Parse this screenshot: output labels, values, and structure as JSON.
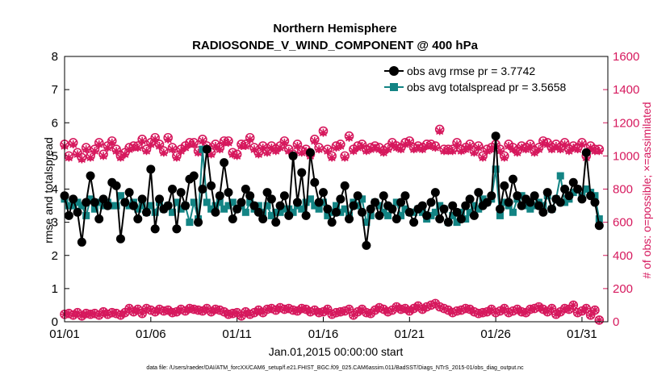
{
  "chart_data": {
    "type": "line",
    "title": "Northern Hemisphere",
    "subtitle": "RADIOSONDE_V_WIND_COMPONENT @ 400 hPa",
    "xlabel": "Jan.01,2015 00:00:00 start",
    "ylabel": "rmse and totalspread",
    "ylabel_right": "# of obs: o=possible; ×=assimilated",
    "xlim": [
      1,
      32.5
    ],
    "ylim": [
      0,
      8
    ],
    "ylim_right": [
      0,
      1600
    ],
    "x_ticks": [
      1,
      6,
      11,
      16,
      21,
      26,
      31
    ],
    "x_tick_labels": [
      "01/01",
      "01/06",
      "01/11",
      "01/16",
      "01/21",
      "01/26",
      "01/31"
    ],
    "y_ticks": [
      0,
      1,
      2,
      3,
      4,
      5,
      6,
      7,
      8
    ],
    "y_ticks_right": [
      0,
      200,
      400,
      600,
      800,
      1000,
      1200,
      1400,
      1600
    ],
    "legend_position": "top-right",
    "colors": {
      "rmse": "#000000",
      "spread": "#138484",
      "obs": "#d6185d"
    },
    "x": [
      1.0,
      1.25,
      1.5,
      1.75,
      2.0,
      2.25,
      2.5,
      2.75,
      3.0,
      3.25,
      3.5,
      3.75,
      4.0,
      4.25,
      4.5,
      4.75,
      5.0,
      5.25,
      5.5,
      5.75,
      6.0,
      6.25,
      6.5,
      6.75,
      7.0,
      7.25,
      7.5,
      7.75,
      8.0,
      8.25,
      8.5,
      8.75,
      9.0,
      9.25,
      9.5,
      9.75,
      10.0,
      10.25,
      10.5,
      10.75,
      11.0,
      11.25,
      11.5,
      11.75,
      12.0,
      12.25,
      12.5,
      12.75,
      13.0,
      13.25,
      13.5,
      13.75,
      14.0,
      14.25,
      14.5,
      14.75,
      15.0,
      15.25,
      15.5,
      15.75,
      16.0,
      16.25,
      16.5,
      16.75,
      17.0,
      17.25,
      17.5,
      17.75,
      18.0,
      18.25,
      18.5,
      18.75,
      19.0,
      19.25,
      19.5,
      19.75,
      20.0,
      20.25,
      20.5,
      20.75,
      21.0,
      21.25,
      21.5,
      21.75,
      22.0,
      22.25,
      22.5,
      22.75,
      23.0,
      23.25,
      23.5,
      23.75,
      24.0,
      24.25,
      24.5,
      24.75,
      25.0,
      25.25,
      25.5,
      25.75,
      26.0,
      26.25,
      26.5,
      26.75,
      27.0,
      27.25,
      27.5,
      27.75,
      28.0,
      28.25,
      28.5,
      28.75,
      29.0,
      29.25,
      29.5,
      29.75,
      30.0,
      30.25,
      30.5,
      30.75,
      31.0,
      31.25,
      31.5,
      31.75,
      32.0
    ],
    "series": [
      {
        "name": "obs avg rmse",
        "legend": "obs avg rmse pr = 3.7742",
        "axis": "left",
        "values": [
          3.8,
          3.2,
          3.7,
          3.3,
          2.4,
          3.6,
          4.4,
          3.6,
          3.1,
          3.7,
          3.5,
          4.2,
          4.1,
          2.5,
          3.6,
          3.9,
          3.5,
          3.1,
          3.7,
          3.3,
          4.6,
          2.8,
          3.7,
          3.4,
          3.5,
          4.0,
          2.8,
          3.9,
          3.5,
          4.3,
          4.4,
          3.0,
          4.0,
          5.2,
          4.1,
          3.3,
          3.8,
          4.8,
          3.9,
          3.1,
          3.4,
          3.6,
          4.0,
          3.8,
          3.5,
          3.3,
          3.1,
          3.9,
          3.7,
          3.0,
          3.5,
          3.8,
          3.2,
          5.0,
          3.6,
          4.5,
          3.2,
          5.1,
          4.2,
          3.6,
          3.9,
          3.4,
          3.0,
          3.3,
          3.7,
          4.1,
          3.1,
          3.5,
          3.8,
          3.3,
          2.3,
          3.4,
          3.6,
          3.2,
          3.8,
          3.5,
          3.4,
          3.1,
          3.6,
          3.8,
          3.3,
          3.0,
          3.4,
          3.5,
          3.2,
          3.6,
          3.9,
          3.1,
          3.4,
          3.0,
          3.5,
          3.3,
          3.1,
          3.5,
          3.7,
          3.2,
          3.9,
          3.5,
          3.6,
          3.8,
          5.6,
          3.4,
          4.1,
          3.6,
          4.3,
          3.8,
          3.5,
          3.7,
          3.6,
          3.8,
          3.5,
          3.3,
          3.9,
          3.4,
          3.7,
          3.6,
          4.0,
          3.8,
          4.2,
          4.0,
          3.7,
          5.1,
          3.8,
          3.6,
          2.9
        ],
        "color": "#000000"
      },
      {
        "name": "obs avg totalspread",
        "legend": "obs avg totalspread pr = 3.5658",
        "axis": "left",
        "values": [
          3.7,
          3.5,
          3.5,
          3.6,
          3.5,
          3.2,
          3.7,
          3.4,
          3.6,
          3.5,
          3.6,
          3.5,
          3.5,
          3.8,
          3.6,
          3.5,
          3.6,
          3.4,
          3.5,
          3.3,
          3.5,
          3.3,
          3.6,
          3.4,
          3.5,
          3.3,
          3.6,
          3.4,
          3.5,
          3.0,
          3.6,
          3.1,
          5.2,
          3.6,
          3.4,
          3.5,
          3.6,
          3.4,
          3.5,
          3.6,
          3.4,
          3.5,
          3.3,
          3.6,
          3.4,
          3.5,
          3.3,
          3.5,
          3.2,
          3.3,
          3.3,
          3.4,
          3.4,
          3.3,
          3.5,
          3.4,
          3.6,
          3.7,
          3.5,
          3.4,
          3.6,
          3.2,
          3.3,
          3.5,
          3.3,
          3.4,
          3.2,
          3.6,
          3.5,
          3.7,
          3.0,
          3.2,
          3.6,
          3.5,
          3.3,
          3.2,
          3.4,
          3.6,
          3.2,
          3.4,
          3.3,
          3.3,
          3.4,
          3.3,
          3.1,
          3.2,
          3.3,
          3.5,
          3.4,
          3.0,
          3.2,
          3.0,
          3.3,
          3.1,
          3.3,
          3.5,
          3.4,
          3.7,
          3.6,
          3.7,
          4.6,
          3.2,
          3.6,
          3.5,
          3.3,
          3.7,
          3.8,
          3.5,
          3.4,
          3.5,
          3.6,
          3.5,
          3.8,
          3.4,
          3.7,
          4.4,
          3.6,
          3.7,
          3.9,
          4.0,
          3.8,
          4.0,
          3.9,
          3.8,
          3.1
        ],
        "color": "#138484"
      },
      {
        "name": "# of obs possible",
        "marker": "o",
        "axis": "right",
        "values": [
          1070,
          1000,
          1080,
          1020,
          990,
          1050,
          1000,
          1040,
          1080,
          1010,
          1060,
          1090,
          1040,
          1000,
          1020,
          1050,
          1060,
          1060,
          1100,
          1040,
          1080,
          1110,
          1070,
          1030,
          1110,
          1050,
          1000,
          1040,
          1060,
          1080,
          1080,
          1030,
          1100,
          1060,
          1020,
          1070,
          1050,
          1090,
          1090,
          1020,
          1010,
          1070,
          1070,
          1110,
          1050,
          1020,
          1060,
          1030,
          1060,
          1040,
          1060,
          1090,
          1040,
          1010,
          1070,
          1030,
          1040,
          1010,
          1100,
          1050,
          1150,
          1040,
          1000,
          1060,
          1070,
          1000,
          1120,
          1040,
          1060,
          1070,
          1040,
          1050,
          1060,
          1050,
          1030,
          1050,
          1080,
          1060,
          1050,
          1080,
          1090,
          1050,
          1060,
          1050,
          1070,
          1070,
          1060,
          1160,
          1040,
          1040,
          1040,
          1080,
          1040,
          1050,
          1070,
          1030,
          1060,
          1000,
          1040,
          1050,
          1070,
          1040,
          1000,
          1070,
          1050,
          1030,
          1060,
          1050,
          1070,
          1030,
          1050,
          1090,
          1080,
          1050,
          1070,
          1050,
          1080,
          1040,
          1060,
          1050,
          1080,
          1000,
          1060,
          1040,
          1040
        ],
        "color": "#d6185d"
      },
      {
        "name": "# of obs assimilated",
        "marker": "x",
        "axis": "right",
        "values": [
          1060,
          990,
          1070,
          1010,
          980,
          1040,
          990,
          1030,
          1070,
          1000,
          1050,
          1080,
          1030,
          990,
          1010,
          1040,
          1050,
          1050,
          1090,
          1030,
          1070,
          1100,
          1060,
          1020,
          1100,
          1040,
          990,
          1030,
          1050,
          1070,
          1070,
          1020,
          1090,
          1050,
          1010,
          1060,
          1040,
          1080,
          1080,
          1010,
          1000,
          1060,
          1060,
          1100,
          1040,
          1010,
          1050,
          1020,
          1050,
          1030,
          1050,
          1080,
          1030,
          1000,
          1060,
          1020,
          1030,
          1000,
          1090,
          1040,
          1140,
          1030,
          990,
          1050,
          1060,
          990,
          1110,
          1030,
          1050,
          1060,
          1030,
          1040,
          1050,
          1040,
          1020,
          1040,
          1070,
          1050,
          1040,
          1070,
          1080,
          1040,
          1050,
          1040,
          1060,
          1060,
          1050,
          1150,
          1030,
          1030,
          1030,
          1070,
          1030,
          1040,
          1060,
          1020,
          1050,
          990,
          1030,
          1040,
          1060,
          1030,
          990,
          1060,
          1040,
          1020,
          1050,
          1040,
          1060,
          1020,
          1040,
          1080,
          1070,
          1040,
          1060,
          1040,
          1070,
          1030,
          1050,
          1040,
          1070,
          990,
          1050,
          1030,
          1030
        ],
        "color": "#d6185d"
      },
      {
        "name": "# of obs possible (low)",
        "marker": "o",
        "axis": "right",
        "values": [
          45,
          50,
          40,
          55,
          35,
          50,
          45,
          50,
          40,
          60,
          45,
          55,
          50,
          40,
          55,
          80,
          60,
          75,
          50,
          80,
          70,
          60,
          75,
          65,
          70,
          55,
          60,
          75,
          65,
          80,
          75,
          70,
          65,
          80,
          60,
          75,
          70,
          60,
          45,
          50,
          55,
          35,
          60,
          45,
          55,
          70,
          55,
          75,
          80,
          70,
          85,
          75,
          80,
          70,
          65,
          80,
          75,
          60,
          70,
          55,
          60,
          75,
          45,
          55,
          60,
          65,
          75,
          40,
          60,
          75,
          55,
          50,
          70,
          85,
          75,
          60,
          70,
          90,
          75,
          80,
          65,
          80,
          95,
          75,
          90,
          100,
          110,
          90,
          80,
          70,
          55,
          65,
          70,
          80,
          75,
          60,
          50,
          55,
          60,
          75,
          55,
          65,
          80,
          55,
          65,
          75,
          60,
          55,
          75,
          80,
          90,
          75,
          60,
          80,
          45,
          60,
          80,
          75,
          100,
          55,
          65,
          80,
          40,
          70,
          10
        ],
        "color": "#d6185d"
      }
    ],
    "footer": "data file: /Users/raeder/DAI/ATM_forcXX/CAM6_setup/f.e21.FHIST_BGC.f09_025.CAM6assim.011/BadSST/Diags_NTrS_2015-01/obs_diag_output.nc"
  }
}
